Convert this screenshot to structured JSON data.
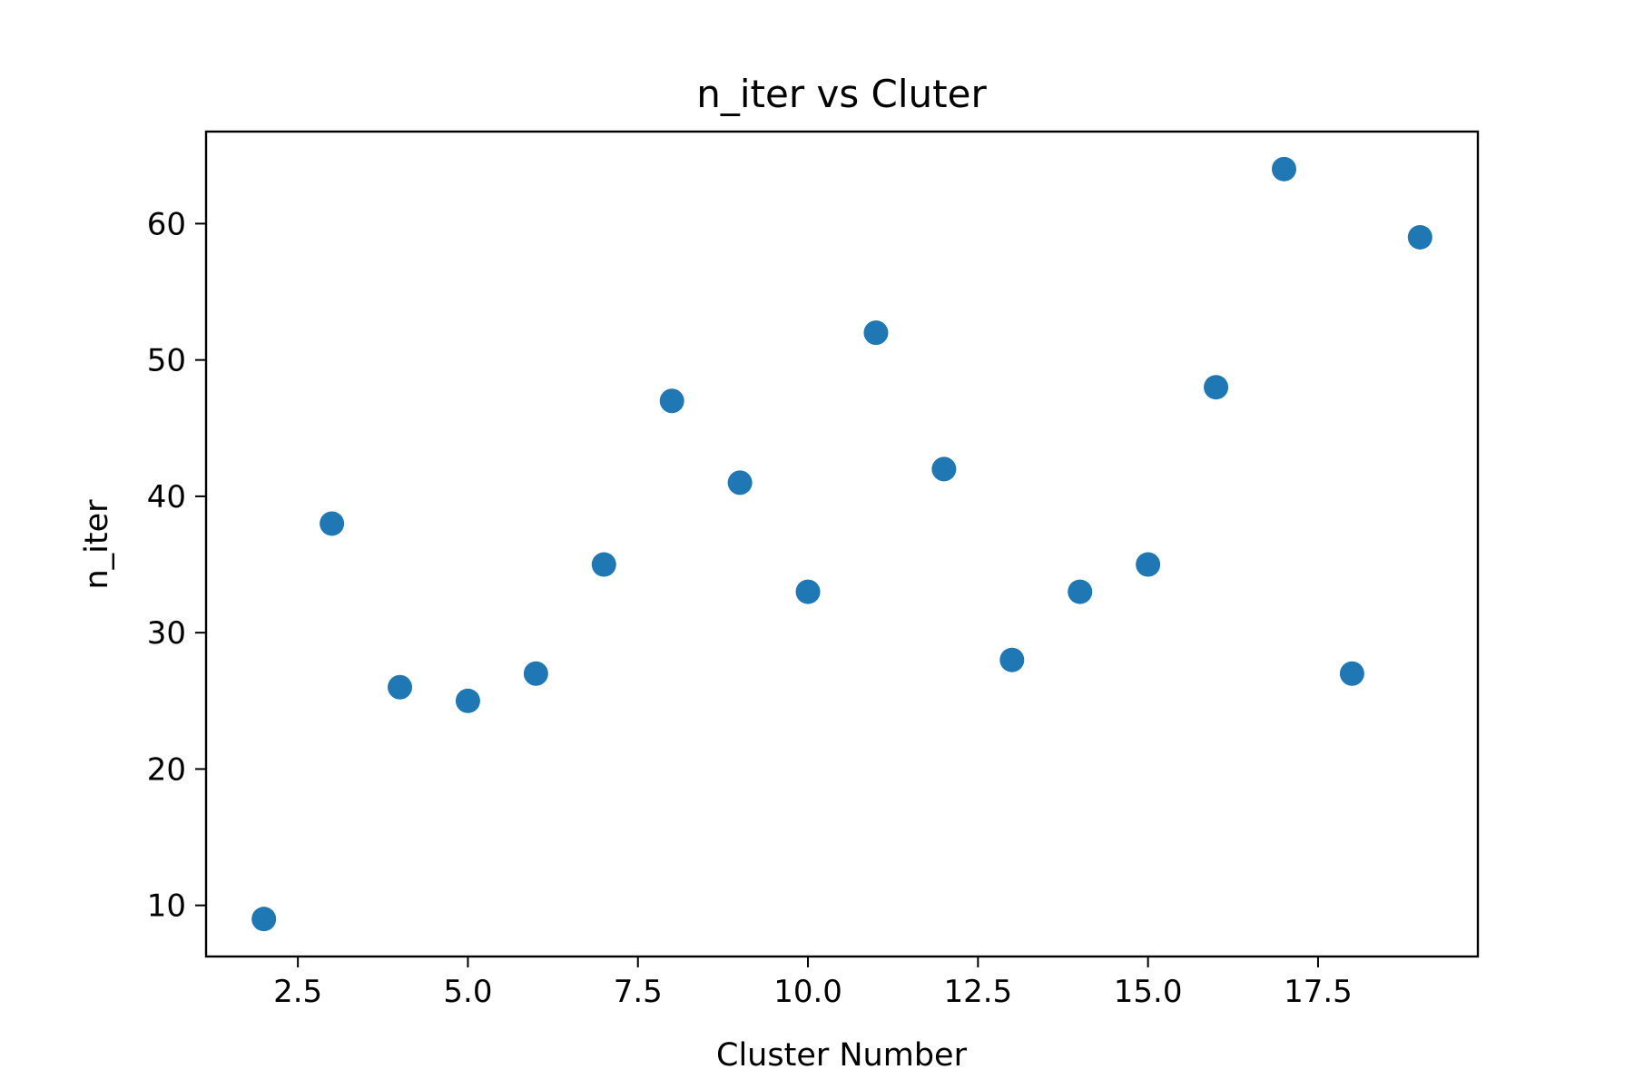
{
  "chart_data": {
    "type": "scatter",
    "title": "n_iter vs Cluter",
    "xlabel": "Cluster Number",
    "ylabel": "n_iter",
    "xlim": [
      1.15,
      19.85
    ],
    "ylim": [
      6.25,
      66.75
    ],
    "xticks": [
      2.5,
      5.0,
      7.5,
      10.0,
      12.5,
      15.0,
      17.5
    ],
    "xtick_labels": [
      "2.5",
      "5.0",
      "7.5",
      "10.0",
      "12.5",
      "15.0",
      "17.5"
    ],
    "yticks": [
      10,
      20,
      30,
      40,
      50,
      60
    ],
    "ytick_labels": [
      "10",
      "20",
      "30",
      "40",
      "50",
      "60"
    ],
    "grid": false,
    "color": "#1f77b4",
    "series": [
      {
        "x": [
          2,
          3,
          4,
          5,
          6,
          7,
          8,
          9,
          10,
          11,
          12,
          13,
          14,
          15,
          16,
          17,
          18,
          19
        ],
        "y": [
          9,
          38,
          26,
          25,
          27,
          35,
          47,
          41,
          33,
          52,
          42,
          28,
          33,
          35,
          48,
          64,
          27,
          59
        ]
      }
    ]
  }
}
